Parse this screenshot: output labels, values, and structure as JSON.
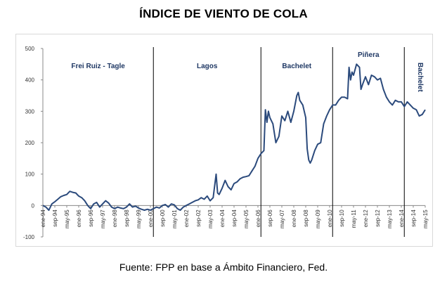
{
  "title": "ÍNDICE DE VIENTO DE COLA",
  "source": "Fuente: FPP en base a Ámbito Financiero, Fed.",
  "colors": {
    "line": "#2b4a7c",
    "period_text": "#1f3864",
    "divider": "#000000",
    "frame": "#d9d9d9"
  },
  "chart_data": {
    "type": "line",
    "title": "ÍNDICE DE VIENTO DE COLA",
    "xlabel": "",
    "ylabel": "",
    "ylim": [
      -100,
      500
    ],
    "yticks": [
      -100,
      0,
      100,
      200,
      300,
      400,
      500
    ],
    "grid": false,
    "x_start": "ene-94",
    "x_end": "may-15",
    "x_tick_labels": [
      "ene-94",
      "sep-94",
      "may-95",
      "ene-96",
      "sep-96",
      "may-97",
      "ene-98",
      "sep-98",
      "may-99",
      "ene-00",
      "sep-00",
      "may-01",
      "ene-02",
      "sep-02",
      "may-03",
      "ene-04",
      "sep-04",
      "may-05",
      "ene-06",
      "sep-06",
      "may-07",
      "ene-08",
      "sep-08",
      "may-09",
      "ene-10",
      "sep-10",
      "may-11",
      "ene-12",
      "sep-12",
      "may-13",
      "ene-14",
      "sep-14",
      "may-15"
    ],
    "periods": [
      {
        "label": "Frei Ruiz - Tagle",
        "start": "ene-94",
        "end": "mar-00"
      },
      {
        "label": "Lagos",
        "start": "mar-00",
        "end": "mar-06"
      },
      {
        "label": "Bachelet",
        "start": "mar-06",
        "end": "mar-10"
      },
      {
        "label": "Piñera",
        "start": "mar-10",
        "end": "mar-14"
      },
      {
        "label": "Bachelet",
        "start": "mar-14",
        "end": "may-15",
        "vertical": true
      }
    ],
    "series": [
      {
        "points": [
          [
            "ene-94",
            0
          ],
          [
            "mar-94",
            -5
          ],
          [
            "may-94",
            -15
          ],
          [
            "jul-94",
            5
          ],
          [
            "sep-94",
            12
          ],
          [
            "nov-94",
            20
          ],
          [
            "ene-95",
            28
          ],
          [
            "mar-95",
            32
          ],
          [
            "may-95",
            35
          ],
          [
            "jul-95",
            45
          ],
          [
            "sep-95",
            42
          ],
          [
            "nov-95",
            40
          ],
          [
            "ene-96",
            30
          ],
          [
            "mar-96",
            25
          ],
          [
            "may-96",
            15
          ],
          [
            "jul-96",
            0
          ],
          [
            "sep-96",
            -10
          ],
          [
            "nov-96",
            5
          ],
          [
            "ene-97",
            10
          ],
          [
            "mar-97",
            -5
          ],
          [
            "may-97",
            5
          ],
          [
            "jul-97",
            15
          ],
          [
            "sep-97",
            8
          ],
          [
            "nov-97",
            -5
          ],
          [
            "ene-98",
            -10
          ],
          [
            "mar-98",
            -5
          ],
          [
            "may-98",
            -8
          ],
          [
            "jul-98",
            -10
          ],
          [
            "sep-98",
            -5
          ],
          [
            "nov-98",
            5
          ],
          [
            "ene-99",
            -5
          ],
          [
            "mar-99",
            -2
          ],
          [
            "may-99",
            -8
          ],
          [
            "jul-99",
            -12
          ],
          [
            "sep-99",
            -15
          ],
          [
            "nov-99",
            -12
          ],
          [
            "ene-00",
            -15
          ],
          [
            "mar-00",
            -10
          ],
          [
            "may-00",
            -5
          ],
          [
            "jul-00",
            -8
          ],
          [
            "sep-00",
            0
          ],
          [
            "nov-00",
            3
          ],
          [
            "ene-01",
            -5
          ],
          [
            "mar-01",
            5
          ],
          [
            "may-01",
            2
          ],
          [
            "jul-01",
            -10
          ],
          [
            "sep-01",
            -15
          ],
          [
            "nov-01",
            -5
          ],
          [
            "ene-02",
            0
          ],
          [
            "mar-02",
            5
          ],
          [
            "may-02",
            10
          ],
          [
            "jul-02",
            15
          ],
          [
            "sep-02",
            18
          ],
          [
            "nov-02",
            25
          ],
          [
            "ene-03",
            20
          ],
          [
            "mar-03",
            30
          ],
          [
            "may-03",
            15
          ],
          [
            "jul-03",
            25
          ],
          [
            "sep-03",
            100
          ],
          [
            "oct-03",
            40
          ],
          [
            "nov-03",
            35
          ],
          [
            "ene-04",
            55
          ],
          [
            "mar-04",
            80
          ],
          [
            "may-04",
            60
          ],
          [
            "jul-04",
            50
          ],
          [
            "sep-04",
            70
          ],
          [
            "nov-04",
            75
          ],
          [
            "ene-05",
            85
          ],
          [
            "mar-05",
            90
          ],
          [
            "may-05",
            92
          ],
          [
            "jul-05",
            95
          ],
          [
            "sep-05",
            110
          ],
          [
            "nov-05",
            125
          ],
          [
            "ene-06",
            150
          ],
          [
            "mar-06",
            165
          ],
          [
            "may-06",
            175
          ],
          [
            "jun-06",
            305
          ],
          [
            "jul-06",
            265
          ],
          [
            "ago-06",
            300
          ],
          [
            "sep-06",
            280
          ],
          [
            "nov-06",
            260
          ],
          [
            "ene-07",
            200
          ],
          [
            "mar-07",
            220
          ],
          [
            "may-07",
            285
          ],
          [
            "jul-07",
            270
          ],
          [
            "sep-07",
            300
          ],
          [
            "nov-07",
            265
          ],
          [
            "ene-08",
            300
          ],
          [
            "mar-08",
            350
          ],
          [
            "abr-08",
            360
          ],
          [
            "may-08",
            335
          ],
          [
            "jul-08",
            320
          ],
          [
            "sep-08",
            280
          ],
          [
            "oct-08",
            180
          ],
          [
            "nov-08",
            145
          ],
          [
            "dic-08",
            135
          ],
          [
            "ene-09",
            145
          ],
          [
            "mar-09",
            175
          ],
          [
            "may-09",
            195
          ],
          [
            "jul-09",
            200
          ],
          [
            "sep-09",
            260
          ],
          [
            "nov-09",
            285
          ],
          [
            "ene-10",
            305
          ],
          [
            "mar-10",
            320
          ],
          [
            "may-10",
            320
          ],
          [
            "jul-10",
            335
          ],
          [
            "sep-10",
            345
          ],
          [
            "nov-10",
            345
          ],
          [
            "ene-11",
            340
          ],
          [
            "feb-11",
            440
          ],
          [
            "mar-11",
            400
          ],
          [
            "abr-11",
            425
          ],
          [
            "may-11",
            415
          ],
          [
            "jul-11",
            450
          ],
          [
            "sep-11",
            440
          ],
          [
            "oct-11",
            370
          ],
          [
            "nov-11",
            385
          ],
          [
            "ene-12",
            410
          ],
          [
            "mar-12",
            385
          ],
          [
            "may-12",
            415
          ],
          [
            "jul-12",
            410
          ],
          [
            "sep-12",
            400
          ],
          [
            "nov-12",
            405
          ],
          [
            "ene-13",
            370
          ],
          [
            "mar-13",
            345
          ],
          [
            "may-13",
            330
          ],
          [
            "jul-13",
            320
          ],
          [
            "sep-13",
            335
          ],
          [
            "nov-13",
            330
          ],
          [
            "ene-14",
            330
          ],
          [
            "mar-14",
            315
          ],
          [
            "may-14",
            330
          ],
          [
            "jul-14",
            320
          ],
          [
            "sep-14",
            310
          ],
          [
            "nov-14",
            305
          ],
          [
            "ene-15",
            285
          ],
          [
            "mar-15",
            290
          ],
          [
            "may-15",
            305
          ]
        ]
      }
    ]
  }
}
